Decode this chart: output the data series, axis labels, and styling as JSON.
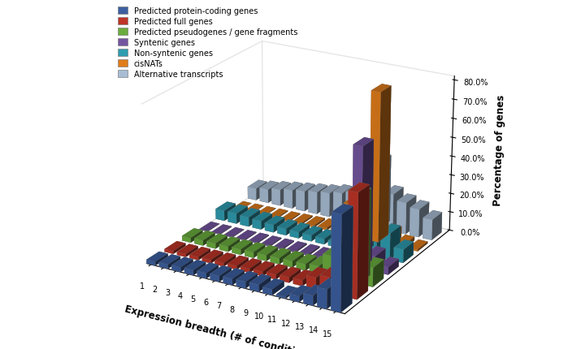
{
  "series_labels": [
    "Predicted protein-coding genes",
    "Predicted full genes",
    "Predicted pseudogenes / gene fragments",
    "Syntenic genes",
    "Non-syntenic genes",
    "cisNATs",
    "Alternative transcripts"
  ],
  "series_colors": [
    "#3C5FA0",
    "#BE3427",
    "#6AAD3D",
    "#7455A0",
    "#2E9CB0",
    "#E07C1A",
    "#A8BDD4"
  ],
  "x_labels": [
    "1",
    "2",
    "3",
    "4",
    "5",
    "6",
    "7",
    "8",
    "9",
    "10",
    "11",
    "12",
    "13",
    "14",
    "15"
  ],
  "xlabel": "Expression breadth (# of conditions)",
  "ylabel": "Percentage of genes",
  "yticks": [
    0.0,
    0.1,
    0.2,
    0.3,
    0.4,
    0.5,
    0.6,
    0.7,
    0.8
  ],
  "ytick_labels": [
    "0.0%",
    "10.0%",
    "20.0%",
    "30.0%",
    "40.0%",
    "50.0%",
    "60.0%",
    "70.0%",
    "80.0%"
  ],
  "data": [
    [
      0.02,
      0.022,
      0.024,
      0.026,
      0.028,
      0.03,
      0.032,
      0.034,
      0.036,
      0.03,
      0.01,
      0.03,
      0.05,
      0.1,
      0.49
    ],
    [
      0.015,
      0.016,
      0.017,
      0.018,
      0.019,
      0.02,
      0.022,
      0.024,
      0.026,
      0.028,
      0.03,
      0.06,
      0.08,
      0.13,
      0.54
    ],
    [
      0.025,
      0.028,
      0.028,
      0.028,
      0.029,
      0.03,
      0.031,
      0.032,
      0.033,
      0.034,
      0.04,
      0.11,
      0.15,
      0.45,
      0.1
    ],
    [
      0.002,
      0.003,
      0.003,
      0.004,
      0.005,
      0.005,
      0.006,
      0.007,
      0.008,
      0.009,
      0.015,
      0.02,
      0.63,
      0.08,
      0.04
    ],
    [
      0.055,
      0.055,
      0.05,
      0.045,
      0.04,
      0.035,
      0.033,
      0.031,
      0.029,
      0.027,
      0.025,
      0.42,
      0.2,
      0.14,
      0.07
    ],
    [
      0.0,
      0.002,
      0.003,
      0.005,
      0.005,
      0.008,
      0.01,
      0.013,
      0.015,
      0.17,
      0.24,
      0.79,
      0.06,
      0.02,
      0.01
    ],
    [
      0.065,
      0.075,
      0.088,
      0.1,
      0.11,
      0.12,
      0.13,
      0.145,
      0.16,
      0.175,
      0.36,
      0.2,
      0.17,
      0.15,
      0.11
    ]
  ],
  "elev": 22,
  "azim": -60,
  "figsize": [
    7.15,
    4.31
  ],
  "dpi": 100
}
